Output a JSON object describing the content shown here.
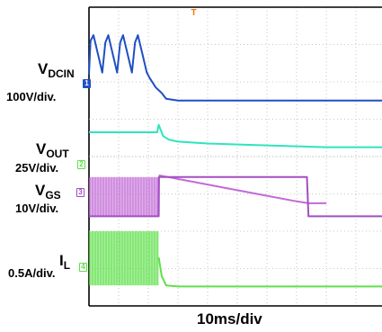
{
  "chart_data": {
    "type": "line",
    "title": "",
    "xlabel": "10ms/div",
    "trigger_marker": "T",
    "grid": true,
    "divisions": {
      "x": 10,
      "y": 8
    },
    "xlim": [
      0,
      10
    ],
    "series": [
      {
        "name": "VDCIN",
        "name_main": "V",
        "name_sub": "DCIN",
        "scale": "100V/div.",
        "channel": "1",
        "color": "#1f4fc4",
        "points": [
          [
            0,
            1.8
          ],
          [
            0.05,
            0.9
          ],
          [
            0.15,
            0.75
          ],
          [
            0.3,
            1.25
          ],
          [
            0.45,
            1.75
          ],
          [
            0.55,
            0.95
          ],
          [
            0.65,
            0.75
          ],
          [
            0.8,
            1.25
          ],
          [
            0.95,
            1.75
          ],
          [
            1.05,
            0.95
          ],
          [
            1.15,
            0.75
          ],
          [
            1.3,
            1.25
          ],
          [
            1.45,
            1.75
          ],
          [
            1.55,
            0.95
          ],
          [
            1.65,
            0.75
          ],
          [
            1.8,
            1.25
          ],
          [
            1.95,
            1.75
          ],
          [
            2.05,
            1.9
          ],
          [
            2.25,
            2.15
          ],
          [
            2.45,
            2.3
          ],
          [
            2.6,
            2.45
          ],
          [
            3.0,
            2.5
          ],
          [
            10,
            2.5
          ]
        ]
      },
      {
        "name": "",
        "name_main": "",
        "name_sub": "",
        "scale": "",
        "channel": "",
        "color": "#2fe4bd",
        "points": [
          [
            0,
            3.35
          ],
          [
            2.3,
            3.35
          ],
          [
            2.35,
            3.15
          ],
          [
            2.5,
            3.45
          ],
          [
            2.7,
            3.55
          ],
          [
            3,
            3.6
          ],
          [
            4,
            3.65
          ],
          [
            6,
            3.7
          ],
          [
            8,
            3.75
          ],
          [
            10,
            3.75
          ]
        ]
      },
      {
        "name": "VOUT",
        "name_main": "V",
        "name_sub": "OUT",
        "scale": "25V/div.",
        "channel": "2",
        "color": "#c26bd6",
        "band": [
          0,
          2.35,
          4.55,
          5.6
        ],
        "points": [
          [
            2.35,
            4.5
          ],
          [
            3,
            4.6
          ],
          [
            4,
            4.75
          ],
          [
            5,
            4.9
          ],
          [
            6,
            5.05
          ],
          [
            7,
            5.2
          ],
          [
            7.4,
            5.25
          ],
          [
            7.45,
            5.25
          ],
          [
            8,
            5.25
          ]
        ]
      },
      {
        "name": "VGS",
        "name_main": "V",
        "name_sub": "GS",
        "scale": "10V/div.",
        "channel": "3",
        "color": "#a24fc2",
        "points": [
          [
            0,
            5.6
          ],
          [
            2.35,
            5.6
          ],
          [
            2.36,
            4.55
          ],
          [
            7.35,
            4.55
          ],
          [
            7.4,
            5.6
          ],
          [
            10,
            5.6
          ]
        ]
      },
      {
        "name": "IL",
        "name_main": "I",
        "name_sub": "L",
        "scale": "0.5A/div.",
        "channel": "4",
        "color": "#5fe04a",
        "band": [
          0,
          2.35,
          6.0,
          7.45
        ],
        "points": [
          [
            2.35,
            6.7
          ],
          [
            2.45,
            7.2
          ],
          [
            2.6,
            7.45
          ],
          [
            3,
            7.48
          ],
          [
            10,
            7.48
          ]
        ]
      }
    ]
  }
}
